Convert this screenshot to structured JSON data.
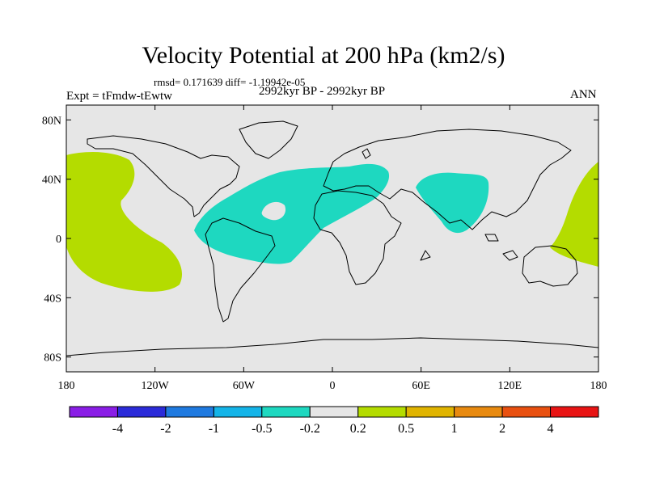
{
  "header": {
    "title": "Velocity Potential at 200 hPa (km2/s)",
    "stats": "rmsd= 0.171639 diff= -1.19942e-05",
    "experiment": "Expt = tFmdw-tEwtw",
    "period": "2992kyr BP - 2992kyr BP",
    "season": "ANN"
  },
  "map": {
    "projection": "cylindrical-equidistant",
    "lon_ticks": [
      "180",
      "120W",
      "60W",
      "0",
      "60E",
      "120E",
      "180"
    ],
    "lat_ticks": [
      "80N",
      "40N",
      "0",
      "40S",
      "80S"
    ],
    "background_color": "#e6e6e6",
    "regions": [
      {
        "name": "negative-anomaly-atlantic-south-america",
        "bin": "-0.5 to -0.2",
        "color": "#1ed8c0"
      },
      {
        "name": "negative-anomaly-south-asia",
        "bin": "-0.5 to -0.2",
        "color": "#1ed8c0"
      },
      {
        "name": "positive-anomaly-central-pacific",
        "bin": "0.2 to 0.5",
        "color": "#b4dc00"
      },
      {
        "name": "positive-anomaly-west-pacific",
        "bin": "0.2 to 0.5",
        "color": "#b4dc00"
      }
    ]
  },
  "colorbar": {
    "labels": [
      "-4",
      "-2",
      "-1",
      "-0.5",
      "-0.2",
      "0.2",
      "0.5",
      "1",
      "2",
      "4"
    ],
    "colors": [
      "#8a1ee6",
      "#2b2bd9",
      "#1f7ae0",
      "#14b4e8",
      "#1ed8c0",
      "#e6e6e6",
      "#b4dc00",
      "#e0b400",
      "#e88a10",
      "#e85010",
      "#e81414"
    ]
  }
}
